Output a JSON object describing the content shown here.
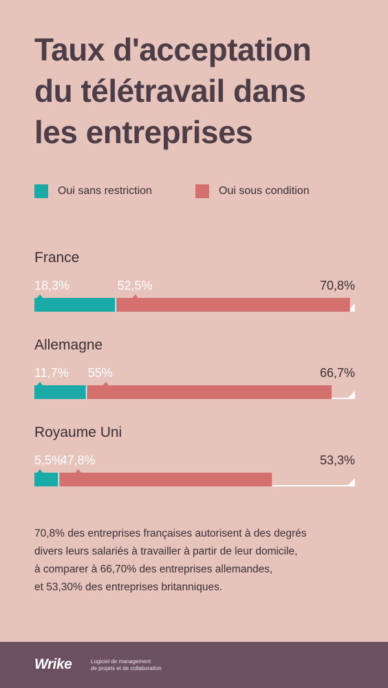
{
  "title": "Taux d'acceptation\ndu télétravail dans\nles entreprises",
  "legend": [
    {
      "label": "Oui sans restriction",
      "color": "#1baaa7"
    },
    {
      "label": "Oui sous condition",
      "color": "#d4706d"
    }
  ],
  "chart_data": {
    "type": "bar",
    "title": "Taux d'acceptation du télétravail dans les entreprises",
    "stacked": true,
    "categories": [
      "France",
      "Allemagne",
      "Royaume Uni"
    ],
    "series": [
      {
        "name": "Oui sans restriction",
        "values": [
          18.3,
          11.7,
          5.5
        ],
        "labels": [
          "18,3%",
          "11,7%",
          "5,5%"
        ],
        "color": "#1baaa7"
      },
      {
        "name": "Oui sous condition",
        "values": [
          52.5,
          55,
          47.8
        ],
        "labels": [
          "52,5%",
          "55%",
          "47,8%"
        ],
        "color": "#d4706d"
      }
    ],
    "totals": [
      70.8,
      66.7,
      53.3
    ],
    "total_labels": [
      "70,8%",
      "66,7%",
      "53,3%"
    ],
    "xlim": [
      0,
      100
    ],
    "track_color": "#ffffff"
  },
  "description": [
    "70,8% des entreprises françaises autorisent à des degrés",
    "divers leurs salariés à travailler à partir de leur domicile,",
    "à comparer à 66,70% des entreprises allemandes,",
    "et 53,30% des entreprises britanniques."
  ],
  "footer": {
    "brand": "Wrike",
    "tagline_line1": "Logiciel de management",
    "tagline_line2": "de projets et de collaboration"
  }
}
